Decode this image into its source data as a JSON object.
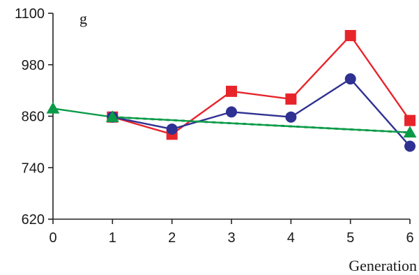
{
  "chart_data": {
    "type": "line",
    "title": "",
    "xlabel": "Generation",
    "ylabel": "g",
    "x": [
      0,
      1,
      2,
      3,
      4,
      5,
      6
    ],
    "xlim": [
      0,
      6
    ],
    "ylim": [
      620,
      1100
    ],
    "yticks": [
      620,
      740,
      860,
      980,
      1100
    ],
    "xticks": [
      0,
      1,
      2,
      3,
      4,
      5,
      6
    ],
    "grid": false,
    "legend": "none",
    "series": [
      {
        "color": "#e8242b",
        "marker": "square",
        "x": [
          1,
          2,
          3,
          4,
          5,
          6
        ],
        "values": [
          858,
          818,
          918,
          900,
          1048,
          850
        ]
      },
      {
        "color": "#2e3192",
        "marker": "circle",
        "x": [
          1,
          2,
          3,
          4,
          5,
          6
        ],
        "values": [
          858,
          830,
          870,
          858,
          947,
          790
        ]
      },
      {
        "color": "#0a9b48",
        "marker": "triangle",
        "x": [
          0,
          1,
          6
        ],
        "values": [
          878,
          858,
          822
        ]
      },
      {
        "color": "#0a9b48",
        "marker": "none",
        "dashed": true,
        "x": [
          1,
          6
        ],
        "values": [
          858,
          822
        ]
      }
    ]
  }
}
